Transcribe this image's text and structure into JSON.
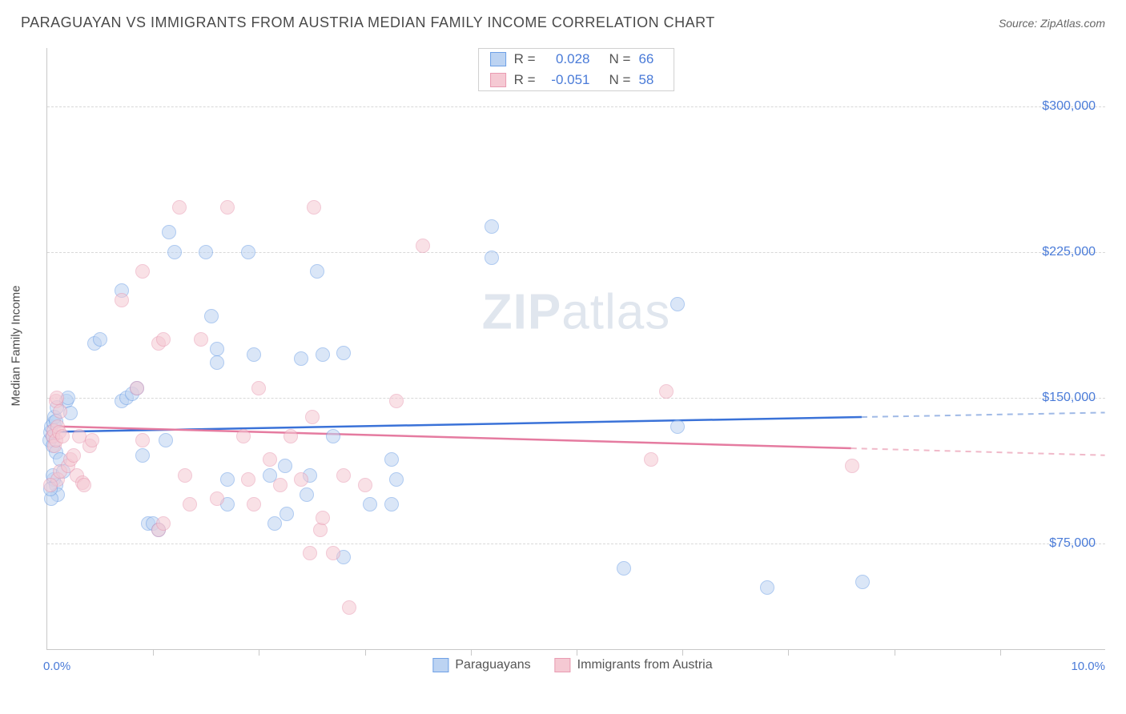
{
  "title": "PARAGUAYAN VS IMMIGRANTS FROM AUSTRIA MEDIAN FAMILY INCOME CORRELATION CHART",
  "source_label": "Source: ",
  "source_name": "ZipAtlas.com",
  "ylabel": "Median Family Income",
  "watermark_a": "ZIP",
  "watermark_b": "atlas",
  "chart": {
    "type": "scatter",
    "xlim": [
      0,
      10
    ],
    "ylim": [
      20000,
      330000
    ],
    "x_axis_min_label": "0.0%",
    "x_axis_max_label": "10.0%",
    "y_ticks": [
      75000,
      150000,
      225000,
      300000
    ],
    "y_tick_labels": [
      "$75,000",
      "$150,000",
      "$225,000",
      "$300,000"
    ],
    "x_ticks_minor": [
      1,
      2,
      3,
      4,
      5,
      6,
      7,
      8,
      9
    ],
    "grid_color": "#d8d8d8",
    "axis_color": "#c8c8c8",
    "tick_label_color": "#4a7bd8",
    "background_color": "#ffffff",
    "marker_radius": 9,
    "marker_opacity": 0.55,
    "marker_stroke_width": 1.2,
    "series": [
      {
        "name": "Paraguayans",
        "fill": "#bcd3f2",
        "stroke": "#6ea0e6",
        "R": "0.028",
        "N": "66",
        "regression": {
          "y_at_x0": 132000,
          "y_at_x10": 142000,
          "data_xmax": 7.7
        },
        "points": [
          [
            0.02,
            128000
          ],
          [
            0.03,
            132000
          ],
          [
            0.04,
            135000
          ],
          [
            0.05,
            130000
          ],
          [
            0.05,
            125000
          ],
          [
            0.06,
            137000
          ],
          [
            0.07,
            140000
          ],
          [
            0.08,
            122000
          ],
          [
            0.06,
            108000
          ],
          [
            0.08,
            105000
          ],
          [
            0.1,
            100000
          ],
          [
            0.04,
            98000
          ],
          [
            0.05,
            110000
          ],
          [
            0.12,
            118000
          ],
          [
            0.15,
            112000
          ],
          [
            0.18,
            148000
          ],
          [
            0.2,
            150000
          ],
          [
            0.22,
            142000
          ],
          [
            0.08,
            138000
          ],
          [
            0.09,
            145000
          ],
          [
            0.45,
            178000
          ],
          [
            0.5,
            180000
          ],
          [
            0.7,
            205000
          ],
          [
            0.7,
            148000
          ],
          [
            0.75,
            150000
          ],
          [
            0.8,
            152000
          ],
          [
            0.85,
            155000
          ],
          [
            0.9,
            120000
          ],
          [
            0.95,
            85000
          ],
          [
            1.0,
            85000
          ],
          [
            1.05,
            82000
          ],
          [
            1.2,
            225000
          ],
          [
            1.12,
            128000
          ],
          [
            1.15,
            235000
          ],
          [
            1.55,
            192000
          ],
          [
            1.5,
            225000
          ],
          [
            1.6,
            168000
          ],
          [
            1.6,
            175000
          ],
          [
            1.7,
            95000
          ],
          [
            1.7,
            108000
          ],
          [
            1.9,
            225000
          ],
          [
            1.95,
            172000
          ],
          [
            2.1,
            110000
          ],
          [
            2.15,
            85000
          ],
          [
            2.25,
            115000
          ],
          [
            2.26,
            90000
          ],
          [
            2.4,
            170000
          ],
          [
            2.45,
            100000
          ],
          [
            2.48,
            110000
          ],
          [
            2.55,
            215000
          ],
          [
            2.6,
            172000
          ],
          [
            2.7,
            130000
          ],
          [
            2.8,
            173000
          ],
          [
            2.8,
            68000
          ],
          [
            3.05,
            95000
          ],
          [
            3.25,
            95000
          ],
          [
            3.25,
            118000
          ],
          [
            3.3,
            108000
          ],
          [
            4.2,
            222000
          ],
          [
            4.2,
            238000
          ],
          [
            5.45,
            62000
          ],
          [
            5.95,
            198000
          ],
          [
            5.95,
            135000
          ],
          [
            6.8,
            52000
          ],
          [
            7.7,
            55000
          ],
          [
            0.03,
            103000
          ]
        ]
      },
      {
        "name": "Immigrants from Austria",
        "fill": "#f5c9d3",
        "stroke": "#e99bb2",
        "R": "-0.051",
        "N": "58",
        "regression": {
          "y_at_x0": 135000,
          "y_at_x10": 120000,
          "data_xmax": 7.6
        },
        "points": [
          [
            0.05,
            130000
          ],
          [
            0.06,
            133000
          ],
          [
            0.07,
            125000
          ],
          [
            0.08,
            128000
          ],
          [
            0.08,
            148000
          ],
          [
            0.09,
            150000
          ],
          [
            0.1,
            135000
          ],
          [
            0.11,
            132000
          ],
          [
            0.12,
            143000
          ],
          [
            0.14,
            130000
          ],
          [
            0.1,
            108000
          ],
          [
            0.12,
            112000
          ],
          [
            0.03,
            105000
          ],
          [
            0.7,
            200000
          ],
          [
            0.85,
            155000
          ],
          [
            0.9,
            215000
          ],
          [
            0.9,
            128000
          ],
          [
            1.05,
            178000
          ],
          [
            1.05,
            82000
          ],
          [
            1.1,
            180000
          ],
          [
            1.1,
            85000
          ],
          [
            1.25,
            248000
          ],
          [
            1.3,
            110000
          ],
          [
            1.35,
            95000
          ],
          [
            1.45,
            180000
          ],
          [
            1.6,
            98000
          ],
          [
            1.7,
            248000
          ],
          [
            1.85,
            130000
          ],
          [
            1.9,
            108000
          ],
          [
            1.95,
            95000
          ],
          [
            2.0,
            155000
          ],
          [
            2.1,
            118000
          ],
          [
            2.2,
            105000
          ],
          [
            2.3,
            130000
          ],
          [
            2.4,
            108000
          ],
          [
            2.48,
            70000
          ],
          [
            2.5,
            140000
          ],
          [
            2.52,
            248000
          ],
          [
            2.58,
            82000
          ],
          [
            2.6,
            88000
          ],
          [
            2.7,
            70000
          ],
          [
            2.8,
            110000
          ],
          [
            2.85,
            42000
          ],
          [
            3.0,
            105000
          ],
          [
            3.3,
            148000
          ],
          [
            3.55,
            228000
          ],
          [
            5.7,
            118000
          ],
          [
            5.85,
            153000
          ],
          [
            7.6,
            115000
          ],
          [
            0.2,
            115000
          ],
          [
            0.22,
            118000
          ],
          [
            0.25,
            120000
          ],
          [
            0.28,
            110000
          ],
          [
            0.3,
            130000
          ],
          [
            0.33,
            106000
          ],
          [
            0.35,
            105000
          ],
          [
            0.4,
            125000
          ],
          [
            0.42,
            128000
          ]
        ]
      }
    ]
  },
  "top_legend": {
    "r_label": "R =",
    "n_label": "N ="
  },
  "bottom_legend_y_offset": 770
}
